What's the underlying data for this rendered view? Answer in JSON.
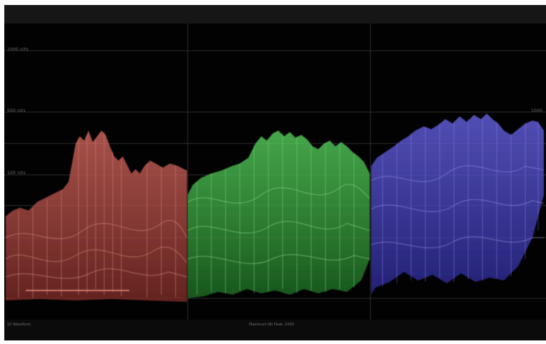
{
  "scope": {
    "type": "rgb-parade",
    "channels": [
      {
        "name": "red-channel",
        "color": "#c8544c"
      },
      {
        "name": "green-channel",
        "color": "#3fc64a"
      },
      {
        "name": "blue-channel",
        "color": "#4d48d6"
      }
    ],
    "grid_labels": {
      "top": "1000 nits",
      "upper": "500 nits",
      "middle": "100 nits",
      "right_marker": "1000"
    }
  },
  "status_bar": {
    "left_text": "10 Waveform",
    "center_text": "Maximum Nit Peak: 1000"
  },
  "colors": {
    "background": "#020202",
    "frame": "#141414",
    "grid": "#2a2a2a",
    "red": "#c8544c",
    "green": "#3fc64a",
    "blue": "#4d48d6"
  }
}
